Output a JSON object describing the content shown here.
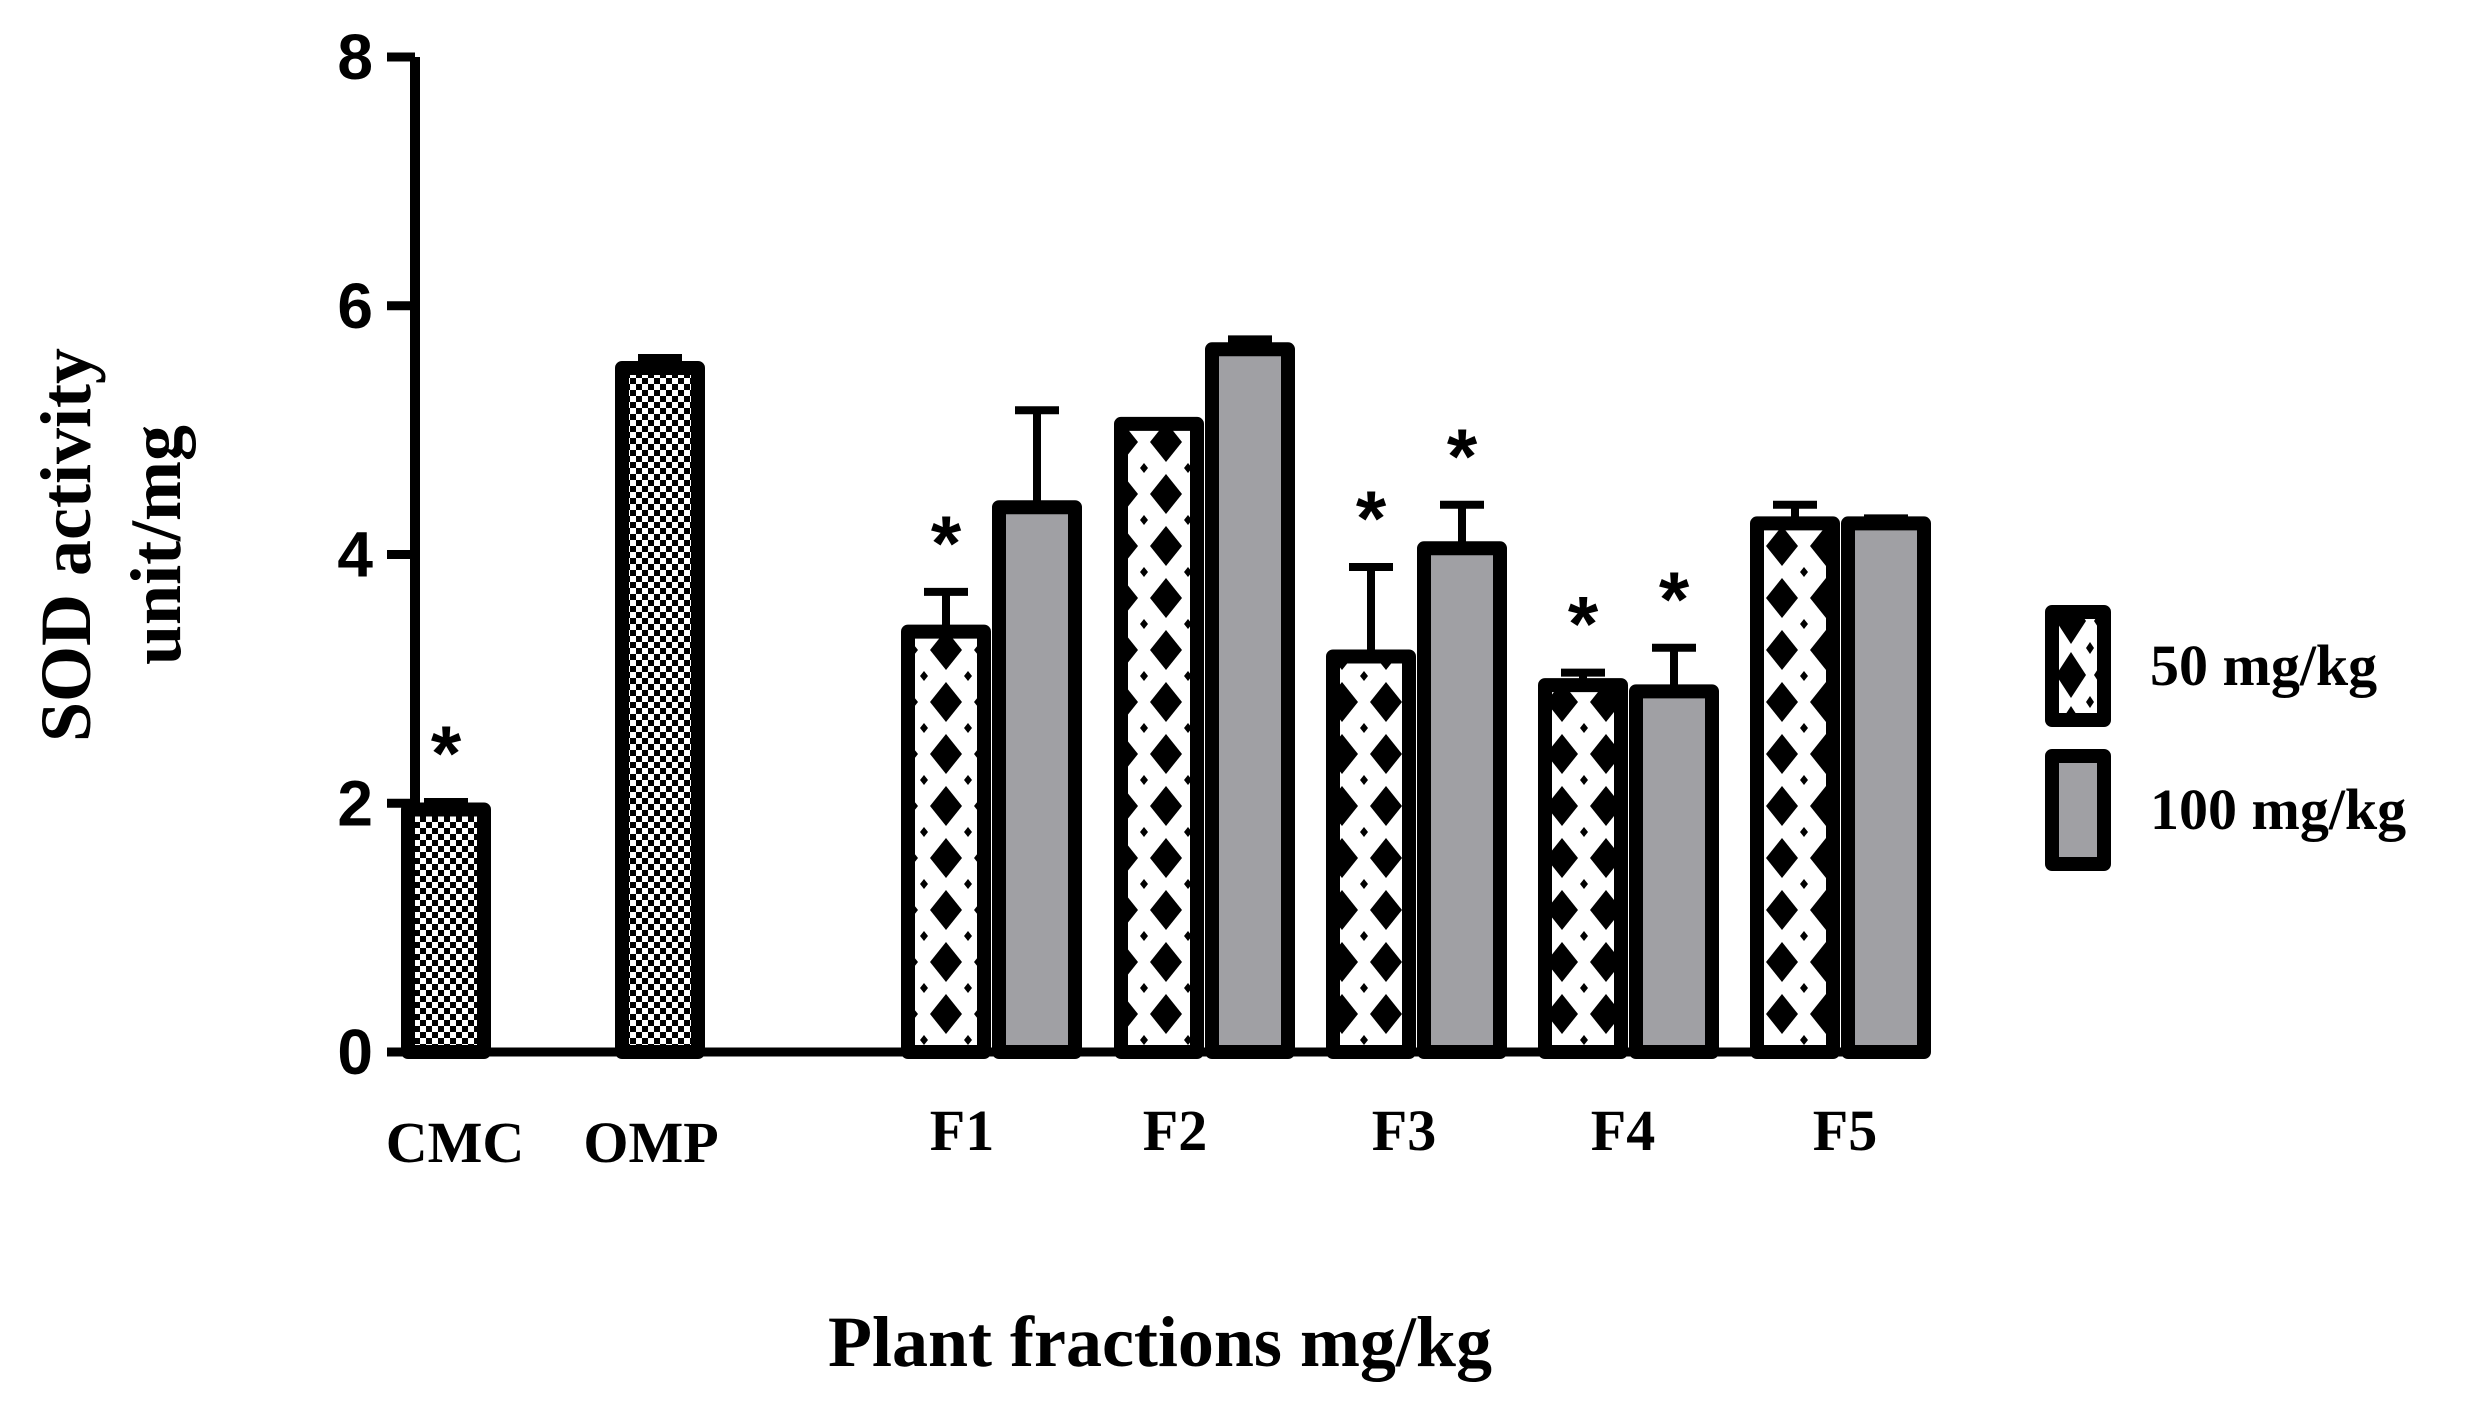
{
  "chart_data": {
    "type": "bar",
    "xlabel": "Plant fractions mg/kg",
    "ylabel_lines": [
      "SOD activity",
      "unit/mg"
    ],
    "ylim": [
      0,
      8
    ],
    "yticks": [
      "0",
      "2",
      "4",
      "6",
      "8"
    ],
    "legend_position": "right",
    "control_groups": [
      {
        "label": "CMC",
        "value": 1.95,
        "error": 0.06,
        "significant": true
      },
      {
        "label": "OMP",
        "value": 5.5,
        "error": 0.08,
        "significant": false
      }
    ],
    "categories": [
      "F1",
      "F2",
      "F3",
      "F4",
      "F5"
    ],
    "series": [
      {
        "name": "50 mg/kg",
        "pattern": "crosshatch",
        "values": [
          3.38,
          5.05,
          3.18,
          2.95,
          4.25
        ],
        "errors": [
          0.32,
          0.0,
          0.72,
          0.1,
          0.15
        ],
        "significant": [
          true,
          false,
          true,
          true,
          false
        ]
      },
      {
        "name": "100 mg/kg",
        "pattern": "gray",
        "values": [
          4.38,
          5.65,
          4.05,
          2.9,
          4.25
        ],
        "errors": [
          0.78,
          0.08,
          0.35,
          0.35,
          0.04
        ],
        "significant": [
          false,
          false,
          true,
          true,
          false
        ]
      }
    ],
    "significance_marker": "*",
    "colors": {
      "bar_outline": "#000000",
      "gray_fill": "#a0a0a4",
      "checker_dark": "#000000",
      "checker_light": "#ffffff"
    }
  }
}
